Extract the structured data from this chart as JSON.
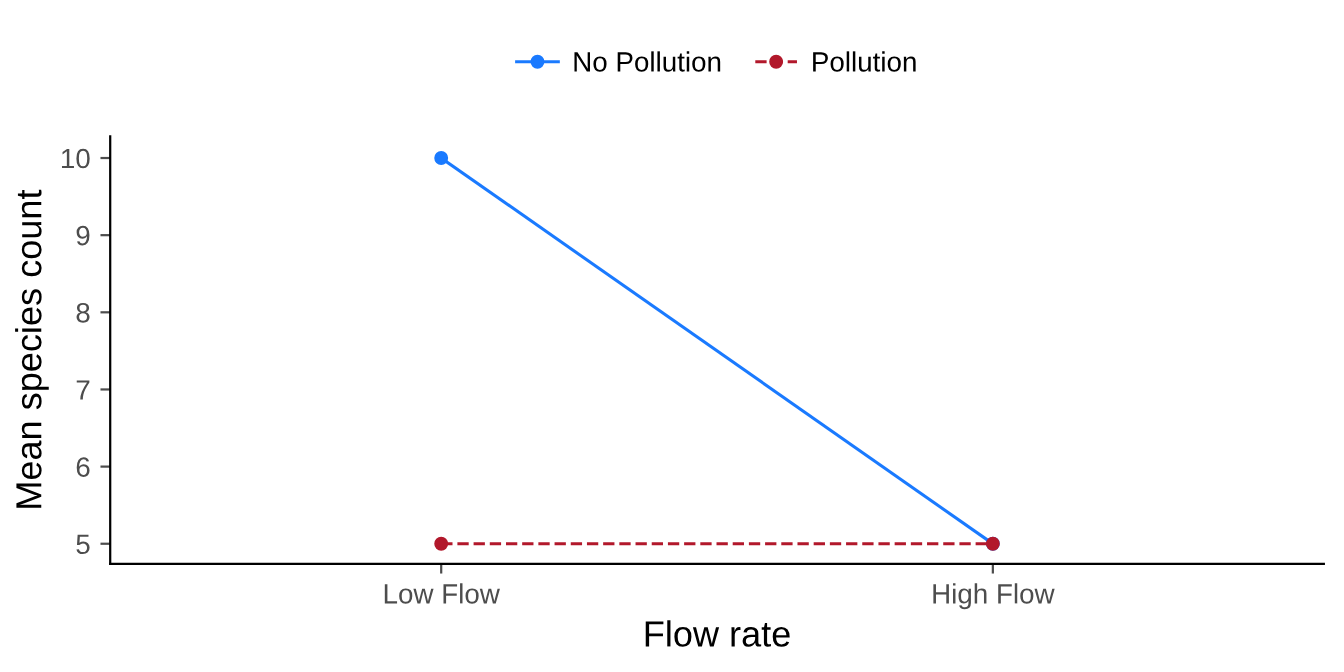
{
  "chart_data": {
    "type": "line",
    "xlabel": "Flow rate",
    "ylabel": "Mean species count",
    "categories": [
      "Low Flow",
      "High Flow"
    ],
    "series": [
      {
        "name": "No Pollution",
        "color": "#1a7aff",
        "values": [
          10,
          5
        ],
        "line_style": "solid"
      },
      {
        "name": "Pollution",
        "color": "#b2182b",
        "values": [
          5,
          5
        ],
        "line_style": "dashed"
      }
    ],
    "ylim": [
      4.74,
      10.28
    ],
    "yticks": [
      5,
      6,
      7,
      8,
      9,
      10
    ],
    "grid": false,
    "legend": "top",
    "marker": "circle"
  }
}
